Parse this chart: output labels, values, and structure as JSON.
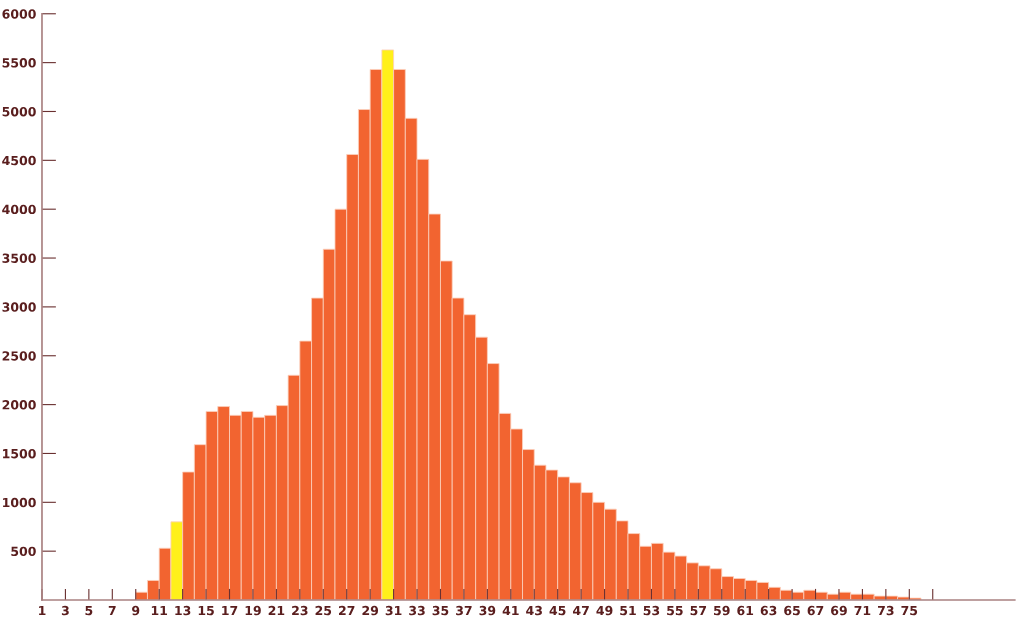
{
  "chart_data": {
    "type": "histogram",
    "bins": [
      9,
      10,
      11,
      12,
      13,
      14,
      15,
      16,
      17,
      18,
      19,
      20,
      21,
      22,
      23,
      24,
      25,
      26,
      27,
      28,
      29,
      30,
      31,
      32,
      33,
      34,
      35,
      36,
      37,
      38,
      39,
      40,
      41,
      42,
      43,
      44,
      45,
      46,
      47,
      48,
      49,
      50,
      51,
      52,
      53,
      54,
      55,
      56,
      57,
      58,
      59,
      60,
      61,
      62,
      63,
      64,
      65,
      66,
      67,
      68,
      69,
      70,
      71,
      72,
      73,
      74,
      75,
      76
    ],
    "values": [
      80,
      200,
      530,
      800,
      1310,
      1590,
      1930,
      1980,
      1890,
      1930,
      1870,
      1890,
      1990,
      2300,
      2650,
      3090,
      3590,
      4000,
      4560,
      5020,
      5430,
      5630,
      5430,
      4930,
      4510,
      3950,
      3470,
      3090,
      2920,
      2690,
      2420,
      1910,
      1750,
      1540,
      1380,
      1330,
      1260,
      1200,
      1100,
      1000,
      930,
      810,
      680,
      550,
      580,
      490,
      450,
      380,
      350,
      320,
      240,
      220,
      200,
      180,
      130,
      100,
      80,
      100,
      80,
      60,
      80,
      60,
      60,
      40,
      40,
      30,
      20
    ],
    "colors": [
      "#f26430",
      "#f26430",
      "#f26430",
      "#fff01a",
      "#f26430",
      "#f26430",
      "#f26430",
      "#f26430",
      "#f26430",
      "#f26430",
      "#f26430",
      "#f26430",
      "#f26430",
      "#f26430",
      "#f26430",
      "#f26430",
      "#f26430",
      "#f26430",
      "#f26430",
      "#f26430",
      "#f26430",
      "#fff01a",
      "#f26430",
      "#f26430",
      "#f26430",
      "#f26430",
      "#f26430",
      "#f26430",
      "#f26430",
      "#f26430",
      "#f26430",
      "#f26430",
      "#f26430",
      "#f26430",
      "#f26430",
      "#f26430",
      "#f26430",
      "#f26430",
      "#f26430",
      "#f26430",
      "#f26430",
      "#f26430",
      "#f26430",
      "#f26430",
      "#f26430",
      "#f26430",
      "#f26430",
      "#f26430",
      "#f26430",
      "#f26430",
      "#f26430",
      "#f26430",
      "#f26430",
      "#f26430",
      "#f26430",
      "#f26430",
      "#f26430",
      "#f26430",
      "#f26430",
      "#f26430",
      "#f26430",
      "#f26430",
      "#f26430",
      "#f26430",
      "#f26430",
      "#f26430",
      "#f26430"
    ],
    "xlim": [
      1,
      84
    ],
    "xticks": [
      1,
      3,
      5,
      7,
      9,
      11,
      13,
      15,
      17,
      19,
      21,
      23,
      25,
      27,
      29,
      31,
      33,
      35,
      37,
      39,
      41,
      43,
      45,
      47,
      49,
      51,
      53,
      55,
      57,
      59,
      61,
      63,
      65,
      67,
      69,
      71,
      73,
      75,
      {
        "value": 77,
        "label": null
      }
    ],
    "ylim": [
      0,
      6000
    ],
    "yticks": [
      500,
      1000,
      1500,
      2000,
      2500,
      3000,
      3500,
      4000,
      4500,
      5000,
      5500,
      6000
    ],
    "grid": false
  }
}
